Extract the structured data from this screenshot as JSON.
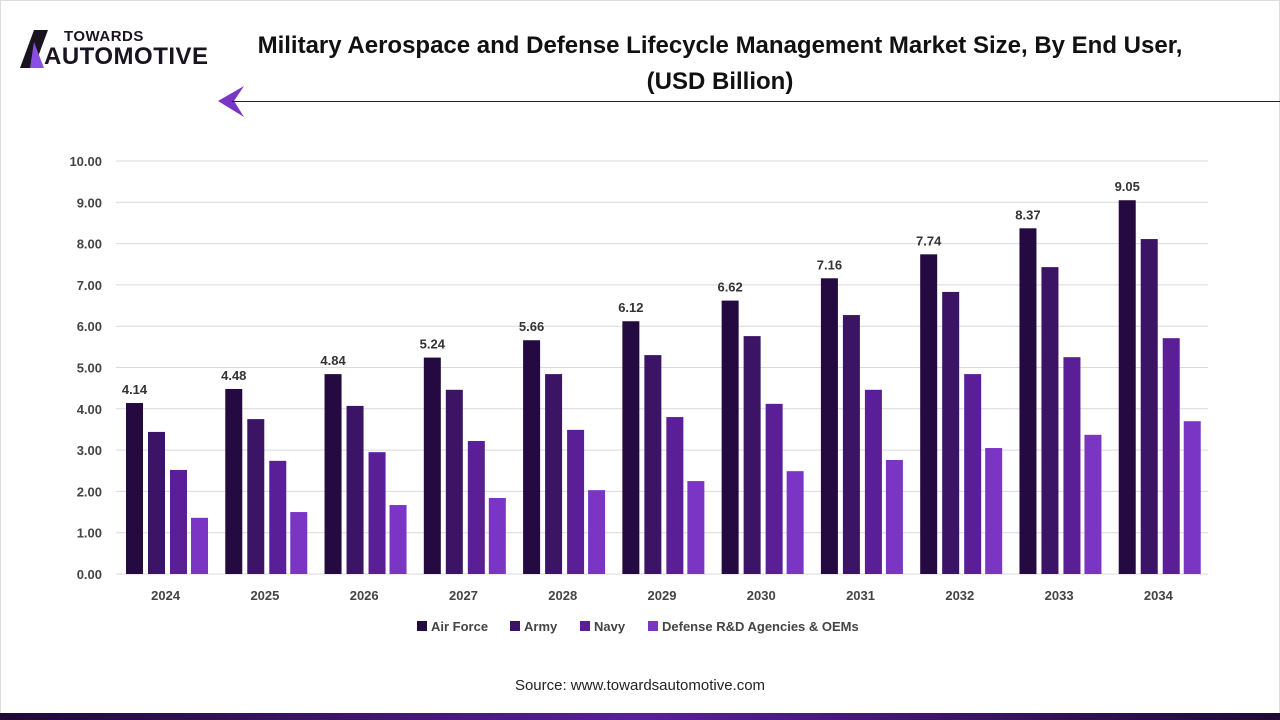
{
  "header": {
    "logo_top": "TOWARDS",
    "logo_bottom": "AUTOMOTIVE",
    "title_line1": "Military Aerospace and Defense Lifecycle Management Market Size, By End User,",
    "title_line2": "(USD Billion)"
  },
  "source": "Source: www.towardsautomotive.com",
  "chart_data": {
    "type": "bar",
    "title": "Military Aerospace and Defense Lifecycle Management Market Size, By End User, (USD Billion)",
    "categories": [
      "2024",
      "2025",
      "2026",
      "2027",
      "2028",
      "2029",
      "2030",
      "2031",
      "2032",
      "2033",
      "2034"
    ],
    "ylim": [
      0,
      10
    ],
    "yticks": [
      "0.00",
      "1.00",
      "2.00",
      "3.00",
      "4.00",
      "5.00",
      "6.00",
      "7.00",
      "8.00",
      "9.00",
      "10.00"
    ],
    "grid": true,
    "legend": "bottom",
    "series": [
      {
        "name": "Air Force",
        "color": "#240a40",
        "values": [
          4.14,
          4.48,
          4.84,
          5.24,
          5.66,
          6.12,
          6.62,
          7.16,
          7.74,
          8.37,
          9.05
        ],
        "labels": true
      },
      {
        "name": "Army",
        "color": "#3b1466",
        "values": [
          3.44,
          3.75,
          4.07,
          4.46,
          4.84,
          5.3,
          5.76,
          6.27,
          6.83,
          7.43,
          8.11
        ]
      },
      {
        "name": "Navy",
        "color": "#5a1f96",
        "values": [
          2.52,
          2.74,
          2.95,
          3.22,
          3.49,
          3.8,
          4.12,
          4.46,
          4.84,
          5.25,
          5.71
        ]
      },
      {
        "name": "Defense R&D Agencies & OEMs",
        "color": "#7b35c4",
        "values": [
          1.36,
          1.5,
          1.67,
          1.84,
          2.03,
          2.25,
          2.49,
          2.76,
          3.05,
          3.37,
          3.7
        ]
      }
    ]
  }
}
